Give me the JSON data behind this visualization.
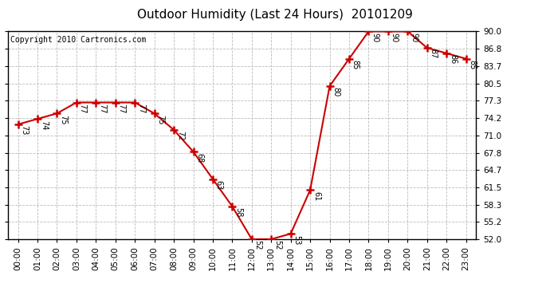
{
  "title": "Outdoor Humidity (Last 24 Hours)  20101209",
  "copyright": "Copyright 2010 Cartronics.com",
  "hours": [
    0,
    1,
    2,
    3,
    4,
    5,
    6,
    7,
    8,
    9,
    10,
    11,
    12,
    13,
    14,
    15,
    16,
    17,
    18,
    19,
    20,
    21,
    22,
    23
  ],
  "values": [
    73,
    74,
    75,
    77,
    77,
    77,
    77,
    75,
    72,
    68,
    63,
    58,
    52,
    52,
    53,
    61,
    80,
    85,
    90,
    90,
    90,
    87,
    86,
    85
  ],
  "xlabels": [
    "00:00",
    "01:00",
    "02:00",
    "03:00",
    "04:00",
    "05:00",
    "06:00",
    "07:00",
    "08:00",
    "09:00",
    "10:00",
    "11:00",
    "12:00",
    "13:00",
    "14:00",
    "15:00",
    "16:00",
    "17:00",
    "18:00",
    "19:00",
    "20:00",
    "21:00",
    "22:00",
    "23:00"
  ],
  "ylim": [
    52.0,
    90.0
  ],
  "yticks": [
    52.0,
    55.2,
    58.3,
    61.5,
    64.7,
    67.8,
    71.0,
    74.2,
    77.3,
    80.5,
    83.7,
    86.8,
    90.0
  ],
  "line_color": "#cc0000",
  "marker_color": "#cc0000",
  "bg_color": "#ffffff",
  "plot_bg_color": "#ffffff",
  "grid_color": "#bbbbbb",
  "title_fontsize": 11,
  "tick_fontsize": 7.5,
  "annotation_fontsize": 7,
  "copyright_fontsize": 7
}
